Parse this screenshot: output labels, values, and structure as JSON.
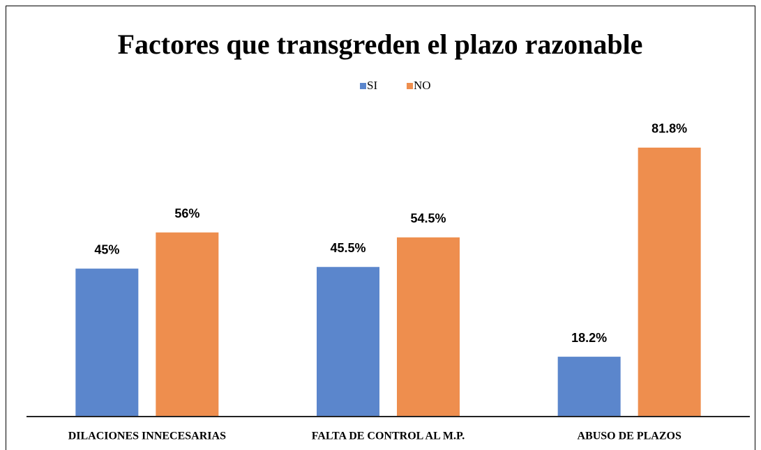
{
  "chart_data": {
    "type": "bar",
    "title": "Factores que transgreden el plazo razonable",
    "categories": [
      "DILACIONES INNECESARIAS",
      "FALTA DE CONTROL AL M.P.",
      "ABUSO DE PLAZOS"
    ],
    "series": [
      {
        "name": "SI",
        "color": "#5b86cc",
        "values": [
          45,
          45.5,
          18.2
        ],
        "value_labels": [
          "45%",
          "45.5%",
          "18.2%"
        ]
      },
      {
        "name": "NO",
        "color": "#ee8e4e",
        "values": [
          56,
          54.5,
          81.8
        ],
        "value_labels": [
          "56%",
          "54.5%",
          "81.8%"
        ]
      }
    ],
    "ylim": [
      0,
      100
    ],
    "legend": "top"
  }
}
